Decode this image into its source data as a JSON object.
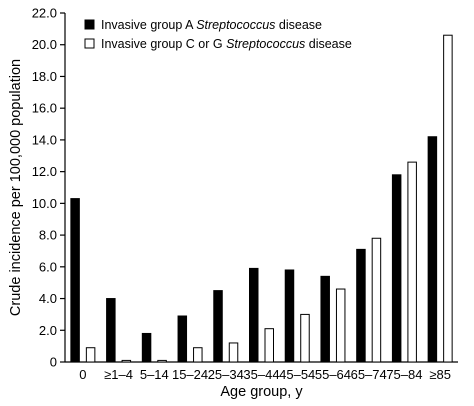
{
  "chart_data": {
    "type": "bar",
    "title": "",
    "xlabel": "Age group, y",
    "ylabel": "Crude incidence per 100,000 population",
    "ylim": [
      0,
      22
    ],
    "yticks": [
      "0",
      "2.0",
      "4.0",
      "6.0",
      "8.0",
      "10.0",
      "12.0",
      "14.0",
      "16.0",
      "18.0",
      "20.0",
      "22.0"
    ],
    "categories": [
      "0",
      "≥1–4",
      "5–14",
      "15–24",
      "25–34",
      "35–44",
      "45–54",
      "55–64",
      "65–74",
      "75–84",
      "≥85"
    ],
    "series": [
      {
        "name": "Invasive group A Streptococcus disease",
        "name_parts": {
          "prefix": "Invasive group A ",
          "italic": "Streptococcus",
          "suffix": " disease"
        },
        "fill": "#000000",
        "values": [
          10.3,
          4.0,
          1.8,
          2.9,
          4.5,
          5.9,
          5.8,
          5.4,
          7.1,
          11.8,
          14.2
        ]
      },
      {
        "name": "Invasive group C or G Streptococcus disease",
        "name_parts": {
          "prefix": "Invasive group C or G ",
          "italic": "Streptococcus",
          "suffix": " disease"
        },
        "fill": "#ffffff",
        "values": [
          0.9,
          0.1,
          0.1,
          0.9,
          1.2,
          2.1,
          3.0,
          4.6,
          7.8,
          12.6,
          20.6
        ]
      }
    ],
    "legend_position": "top-left",
    "grid": false
  }
}
